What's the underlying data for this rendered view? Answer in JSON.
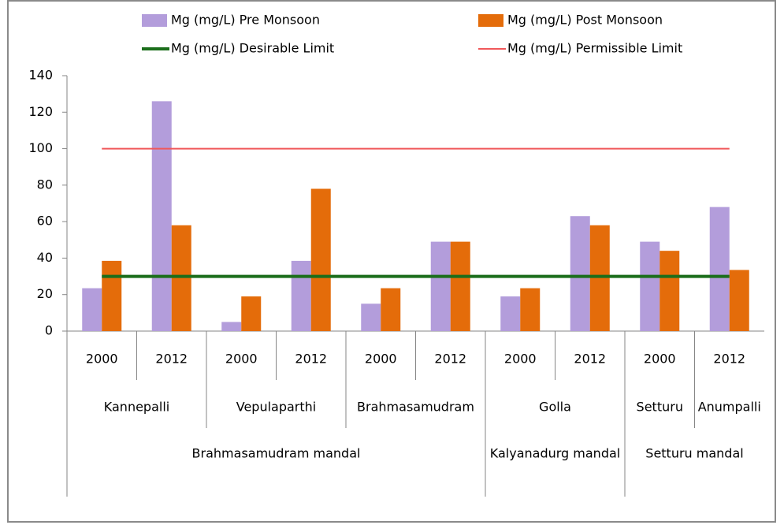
{
  "chart_data": {
    "type": "bar",
    "categories": [
      "2000",
      "2012",
      "2000",
      "2012",
      "2000",
      "2012",
      "2000",
      "2012",
      "2000",
      "2012"
    ],
    "groups": [
      {
        "label": "Kannepalli",
        "span": 2
      },
      {
        "label": "Vepulaparthi",
        "span": 2
      },
      {
        "label": "Brahmasamudram",
        "span": 2
      },
      {
        "label": "Golla",
        "span": 2
      },
      {
        "label": "Setturu",
        "span": 1
      },
      {
        "label": "Anumpalli",
        "span": 1
      }
    ],
    "supergroups": [
      {
        "label": "Brahmasamudram mandal",
        "span": 6
      },
      {
        "label": "Kalyanadurg mandal",
        "span": 2
      },
      {
        "label": "Setturu mandal",
        "span": 2
      }
    ],
    "series": [
      {
        "name": "Mg (mg/L) Pre Monsoon",
        "type": "bar",
        "color": "#b39ddb",
        "values": [
          23.5,
          126,
          5,
          38.5,
          15,
          49,
          19,
          63,
          49,
          68
        ]
      },
      {
        "name": "Mg (mg/L) Post Monsoon",
        "type": "bar",
        "color": "#e46c0a",
        "values": [
          38.5,
          58,
          19,
          78,
          23.5,
          49,
          23.5,
          58,
          44,
          33.5
        ]
      },
      {
        "name": "Mg (mg/L) Desirable Limit",
        "type": "line",
        "color": "#1b6e1b",
        "values": [
          30,
          30,
          30,
          30,
          30,
          30,
          30,
          30,
          30,
          30
        ]
      },
      {
        "name": "Mg (mg/L) Permissible Limit",
        "type": "line",
        "color": "#f0585a",
        "values": [
          100,
          100,
          100,
          100,
          100,
          100,
          100,
          100,
          100,
          100
        ]
      }
    ],
    "ylim": [
      0,
      140
    ],
    "yticks": [
      0,
      20,
      40,
      60,
      80,
      100,
      120,
      140
    ],
    "grid": false,
    "legend": "top"
  }
}
